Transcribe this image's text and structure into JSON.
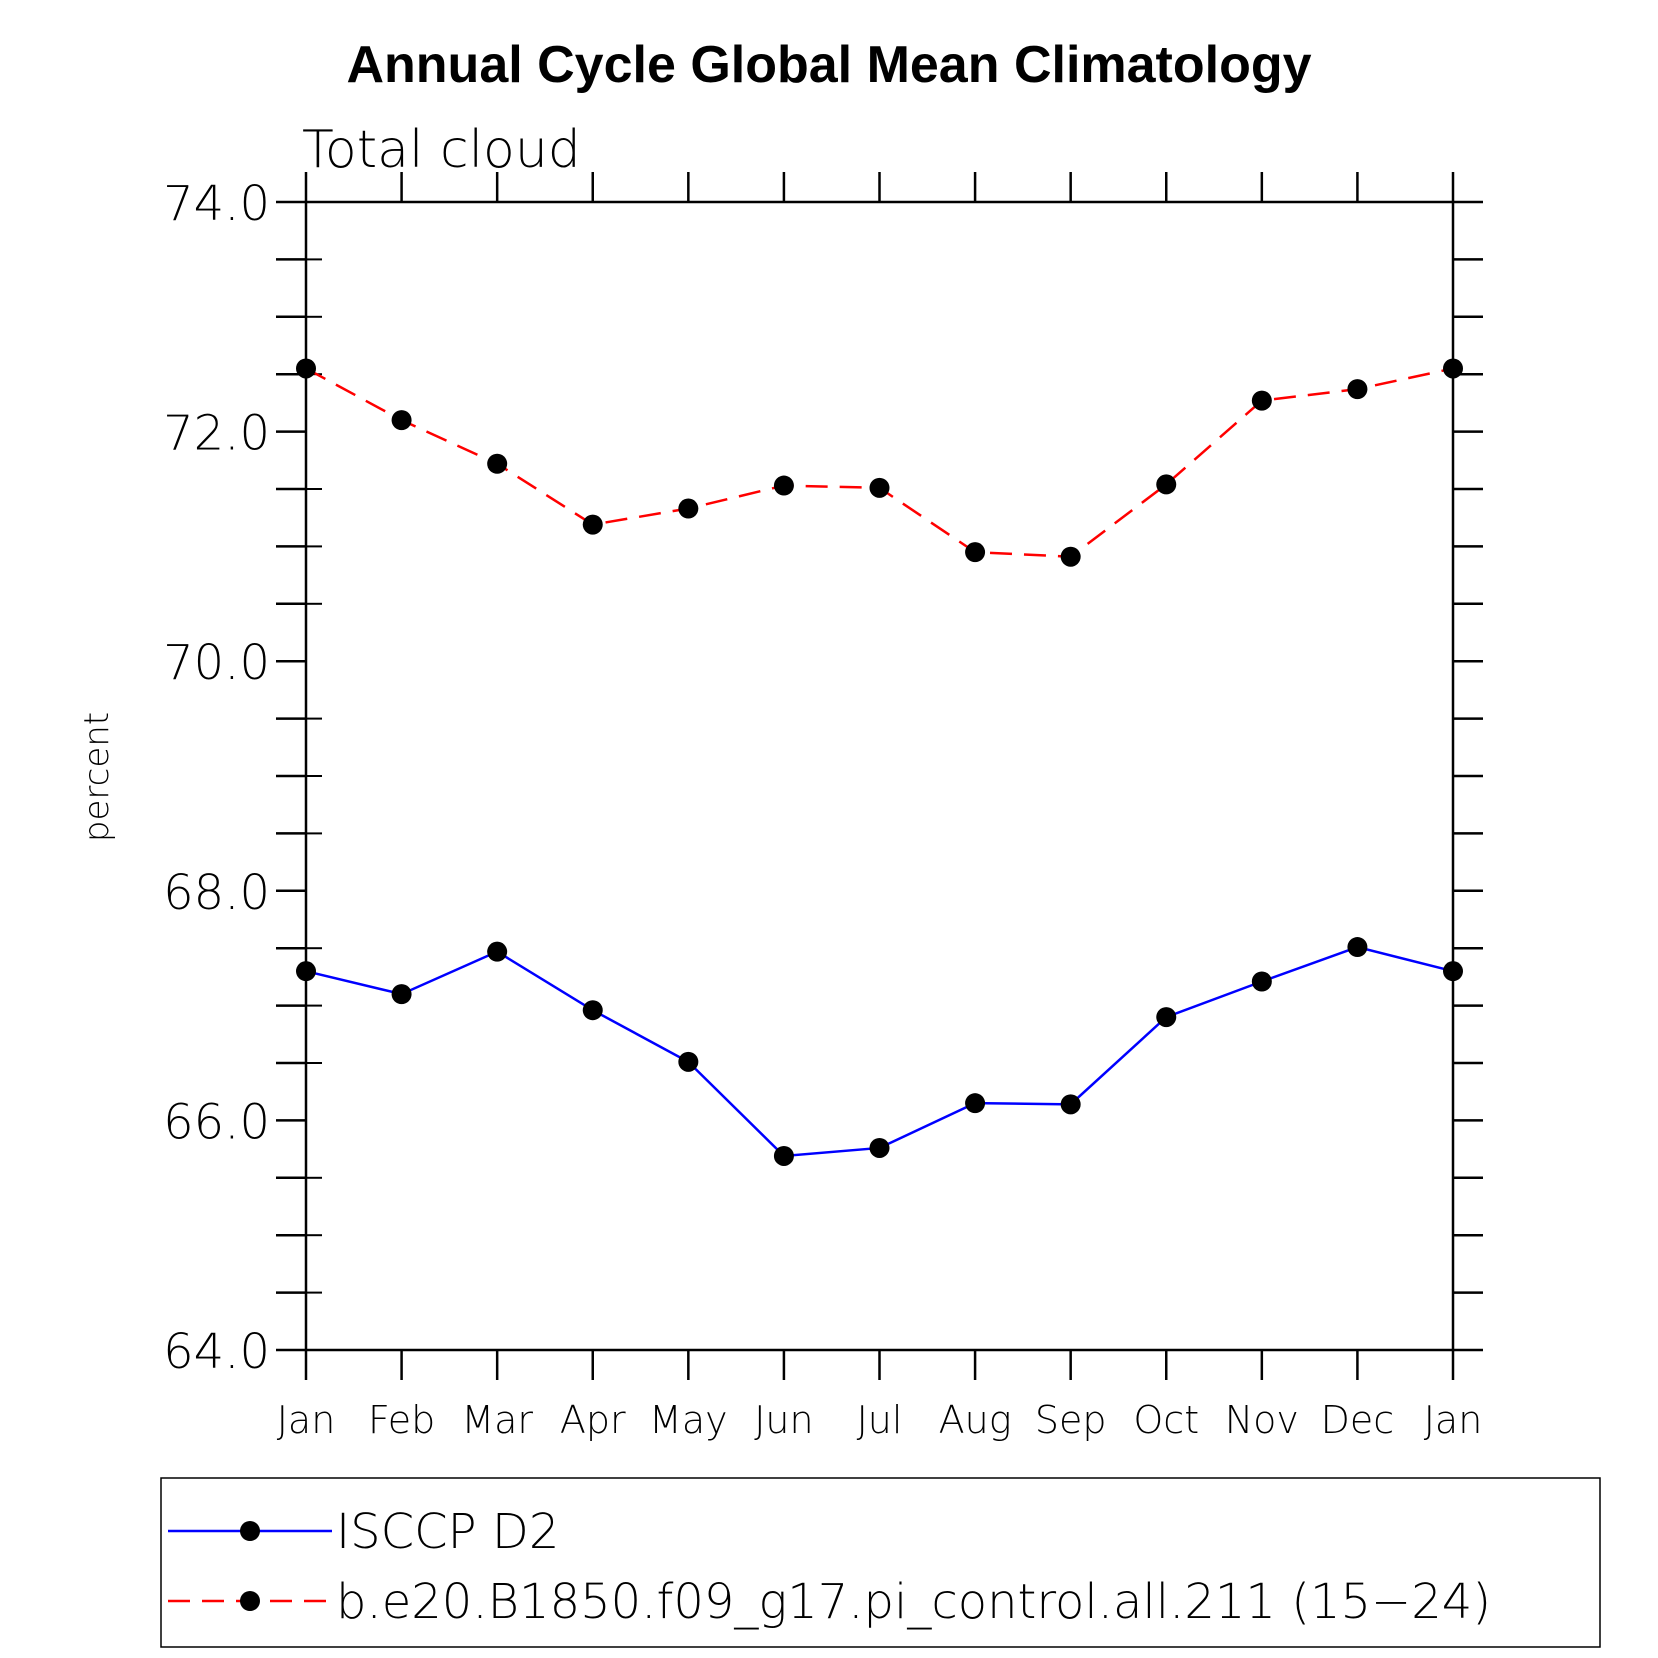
{
  "chart_data": {
    "type": "line",
    "title": "Annual Cycle Global Mean Climatology",
    "subtitle": "Total cloud",
    "xlabel": "",
    "ylabel": "percent",
    "categories": [
      "Jan",
      "Feb",
      "Mar",
      "Apr",
      "May",
      "Jun",
      "Jul",
      "Aug",
      "Sep",
      "Oct",
      "Nov",
      "Dec",
      "Jan"
    ],
    "ylim": [
      64.0,
      74.0
    ],
    "yticks": [
      "64.0",
      "66.0",
      "68.0",
      "70.0",
      "72.0",
      "74.0"
    ],
    "ytick_values": [
      64,
      66,
      68,
      70,
      72,
      74
    ],
    "grid": false,
    "legend_position": "bottom",
    "series": [
      {
        "name": "ISCCP D2",
        "color": "#0000ff",
        "style": "solid",
        "marker": "filled-circle",
        "values": [
          67.3,
          67.1,
          67.47,
          66.96,
          66.51,
          65.69,
          65.76,
          66.15,
          66.14,
          66.9,
          67.21,
          67.51,
          67.3
        ]
      },
      {
        "name": "b.e20.B1850.f09_g17.pi_control.all.211 (15−24)",
        "color": "#ff0000",
        "style": "dashed",
        "marker": "filled-circle",
        "values": [
          72.55,
          72.1,
          71.72,
          71.19,
          71.33,
          71.53,
          71.51,
          70.95,
          70.91,
          71.54,
          72.27,
          72.37,
          72.55
        ]
      }
    ]
  }
}
